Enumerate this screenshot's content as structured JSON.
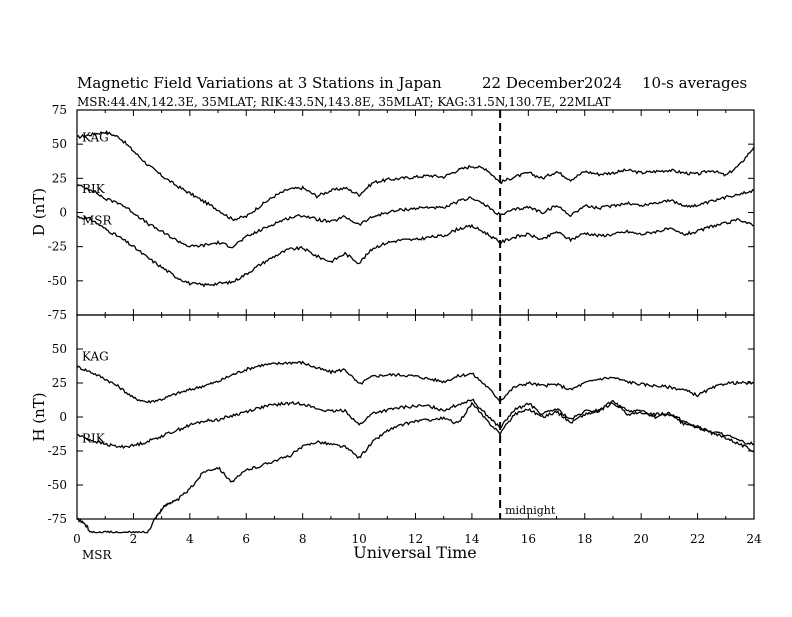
{
  "header": {
    "title": "Magnetic Field Variations at 3 Stations in Japan",
    "date": "22 December2024",
    "averaging": "10-s averages",
    "stations_line": "MSR:44.4N,142.3E, 35MLAT;  RIK:43.5N,143.8E, 35MLAT;  KAG:31.5N,130.7E, 22MLAT"
  },
  "annotation": {
    "midnight_label": "midnight",
    "midnight_ut": 15
  },
  "chart_data": [
    {
      "type": "line",
      "id": "D",
      "ylabel": "D (nT)",
      "ylim": [
        -75,
        75
      ],
      "yticks": [
        -75,
        -50,
        -25,
        0,
        25,
        50,
        75
      ],
      "xlim": [
        0,
        24
      ],
      "grid": false,
      "series": [
        {
          "name": "KAG",
          "x": [
            0,
            0.5,
            1,
            1.5,
            2,
            2.5,
            3,
            3.5,
            4,
            4.5,
            5,
            5.5,
            6,
            6.5,
            7,
            7.5,
            8,
            8.5,
            9,
            9.5,
            10,
            10.5,
            11,
            11.5,
            12,
            12.5,
            13,
            13.5,
            14,
            14.5,
            15,
            15.5,
            16,
            16.5,
            17,
            17.5,
            18,
            18.5,
            19,
            19.5,
            20,
            20.5,
            21,
            21.5,
            22,
            22.5,
            23,
            23.5,
            24
          ],
          "values": [
            55,
            57,
            59,
            55,
            45,
            35,
            27,
            20,
            14,
            8,
            2,
            -5,
            -3,
            5,
            12,
            17,
            18,
            12,
            16,
            18,
            13,
            22,
            24,
            25,
            26,
            27,
            26,
            31,
            34,
            32,
            22,
            26,
            29,
            25,
            30,
            24,
            30,
            28,
            29,
            31,
            29,
            30,
            31,
            29,
            28,
            31,
            27,
            35,
            48
          ]
        },
        {
          "name": "RIK",
          "x": [
            0,
            0.5,
            1,
            1.5,
            2,
            2.5,
            3,
            3.5,
            4,
            4.5,
            5,
            5.5,
            6,
            6.5,
            7,
            7.5,
            8,
            8.5,
            9,
            9.5,
            10,
            10.5,
            11,
            11.5,
            12,
            12.5,
            13,
            13.5,
            14,
            14.5,
            15,
            15.5,
            16,
            16.5,
            17,
            17.5,
            18,
            18.5,
            19,
            19.5,
            20,
            20.5,
            21,
            21.5,
            22,
            22.5,
            23,
            23.5,
            24
          ],
          "values": [
            20,
            17,
            10,
            7,
            0,
            -8,
            -14,
            -20,
            -25,
            -24,
            -22,
            -25,
            -18,
            -13,
            -8,
            -4,
            -2,
            -5,
            -7,
            -3,
            -9,
            -3,
            0,
            2,
            3,
            4,
            3,
            8,
            11,
            5,
            -2,
            2,
            4,
            0,
            5,
            -2,
            5,
            3,
            5,
            7,
            5,
            7,
            9,
            5,
            5,
            8,
            11,
            14,
            16
          ]
        },
        {
          "name": "MSR",
          "x": [
            0,
            0.5,
            1,
            1.5,
            2,
            2.5,
            3,
            3.5,
            4,
            4.5,
            5,
            5.5,
            6,
            6.5,
            7,
            7.5,
            8,
            8.5,
            9,
            9.5,
            10,
            10.5,
            11,
            11.5,
            12,
            12.5,
            13,
            13.5,
            14,
            14.5,
            15,
            15.5,
            16,
            16.5,
            17,
            17.5,
            18,
            18.5,
            19,
            19.5,
            20,
            20.5,
            21,
            21.5,
            22,
            22.5,
            23,
            23.5,
            24
          ],
          "values": [
            -3,
            -5,
            -12,
            -18,
            -25,
            -33,
            -40,
            -47,
            -52,
            -53,
            -52,
            -51,
            -45,
            -38,
            -32,
            -27,
            -26,
            -32,
            -36,
            -30,
            -37,
            -26,
            -22,
            -20,
            -20,
            -18,
            -17,
            -12,
            -10,
            -15,
            -22,
            -18,
            -16,
            -20,
            -14,
            -20,
            -15,
            -17,
            -16,
            -14,
            -16,
            -14,
            -12,
            -16,
            -14,
            -10,
            -8,
            -5,
            -10
          ]
        }
      ]
    },
    {
      "type": "line",
      "id": "H",
      "ylabel": "H (nT)",
      "ylim": [
        -75,
        75
      ],
      "yticks": [
        -75,
        -50,
        -25,
        0,
        25,
        50
      ],
      "xlim": [
        0,
        24
      ],
      "xticks": [
        0,
        2,
        4,
        6,
        8,
        10,
        12,
        14,
        16,
        18,
        20,
        22,
        24
      ],
      "xlabel": "Universal Time",
      "grid": false,
      "series": [
        {
          "name": "KAG",
          "x": [
            0,
            0.5,
            1,
            1.5,
            2,
            2.5,
            3,
            3.5,
            4,
            4.5,
            5,
            5.5,
            6,
            6.5,
            7,
            7.5,
            8,
            8.5,
            9,
            9.5,
            10,
            10.5,
            11,
            11.5,
            12,
            12.5,
            13,
            13.5,
            14,
            14.5,
            15,
            15.5,
            16,
            16.5,
            17,
            17.5,
            18,
            18.5,
            19,
            19.5,
            20,
            20.5,
            21,
            21.5,
            22,
            22.5,
            23,
            23.5,
            24
          ],
          "values": [
            37,
            33,
            28,
            22,
            14,
            11,
            13,
            17,
            20,
            23,
            26,
            31,
            35,
            38,
            39,
            40,
            40,
            36,
            33,
            35,
            24,
            30,
            31,
            31,
            30,
            28,
            26,
            30,
            32,
            23,
            12,
            22,
            25,
            23,
            24,
            20,
            25,
            28,
            29,
            26,
            24,
            23,
            22,
            20,
            16,
            21,
            25,
            25,
            25
          ]
        },
        {
          "name": "RIK",
          "x": [
            0,
            0.5,
            1,
            1.5,
            2,
            2.5,
            3,
            3.5,
            4,
            4.5,
            5,
            5.5,
            6,
            6.5,
            7,
            7.5,
            8,
            8.5,
            9,
            9.5,
            10,
            10.5,
            11,
            11.5,
            12,
            12.5,
            13,
            13.5,
            14,
            14.5,
            15,
            15.5,
            16,
            16.5,
            17,
            17.5,
            18,
            18.5,
            19,
            19.5,
            20,
            20.5,
            21,
            21.5,
            22,
            22.5,
            23,
            23.5,
            24
          ],
          "values": [
            -13,
            -17,
            -20,
            -22,
            -21,
            -18,
            -14,
            -10,
            -6,
            -3,
            -2,
            1,
            4,
            7,
            9,
            10,
            10,
            6,
            4,
            5,
            -6,
            3,
            5,
            7,
            8,
            8,
            5,
            9,
            13,
            2,
            -8,
            5,
            10,
            2,
            6,
            -2,
            4,
            5,
            10,
            5,
            4,
            2,
            3,
            -3,
            -8,
            -11,
            -13,
            -18,
            -20
          ]
        },
        {
          "name": "MSR",
          "x": [
            0,
            0.25,
            0.5,
            1,
            1.5,
            2,
            2.5,
            2.75,
            3,
            3.25,
            3.5,
            4,
            4.5,
            5,
            5.5,
            6,
            6.5,
            7,
            7.5,
            8,
            8.5,
            9,
            9.5,
            10,
            10.5,
            11,
            11.5,
            12,
            12.5,
            13,
            13.5,
            14,
            14.5,
            15,
            15.5,
            16,
            16.5,
            17,
            17.5,
            18,
            18.5,
            19,
            19.5,
            20,
            20.5,
            21,
            21.5,
            22,
            22.5,
            23,
            23.5,
            24
          ],
          "values": [
            -75,
            -78,
            -85,
            -85,
            -85,
            -85,
            -85,
            -75,
            -68,
            -63,
            -62,
            -53,
            -40,
            -37,
            -48,
            -39,
            -36,
            -32,
            -29,
            -22,
            -18,
            -20,
            -22,
            -30,
            -18,
            -10,
            -6,
            -3,
            -2,
            -1,
            -5,
            10,
            -2,
            -12,
            2,
            6,
            0,
            4,
            -4,
            2,
            4,
            12,
            2,
            3,
            0,
            2,
            -5,
            -7,
            -12,
            -15,
            -20,
            -25
          ]
        }
      ]
    }
  ]
}
